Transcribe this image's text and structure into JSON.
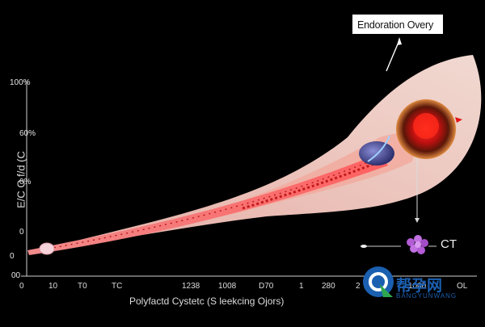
{
  "annotation": {
    "label": "Endoration Overy"
  },
  "yaxis": {
    "title": "E/C O f/d (C",
    "ticks": [
      "100%",
      "60%",
      "0%",
      "0",
      "0",
      "00"
    ]
  },
  "xaxis": {
    "title": "Polyfactd Cystetc (S leekcing Ojors)",
    "ticks": [
      "0",
      "10",
      "T0",
      "TC",
      "1238",
      "1008",
      "D70",
      "1",
      "280",
      "2",
      "1000",
      "OL"
    ]
  },
  "marker": {
    "label": "CT"
  },
  "watermark": {
    "brand": "帮孕网",
    "sub": "BANGYUNWANG"
  },
  "colors": {
    "background": "#000000",
    "tube": "#e24a4a",
    "tissue": "#f7c9c0",
    "lesion": "#c91414",
    "probe": "#4a4fa0",
    "dots": "#b35cd6",
    "brand": "#1b5fb0"
  }
}
